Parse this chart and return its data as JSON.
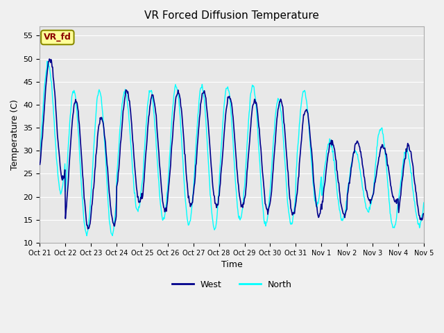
{
  "title": "VR Forced Diffusion Temperature",
  "xlabel": "Time",
  "ylabel": "Temperature (C)",
  "ylim": [
    10,
    57
  ],
  "yticks": [
    10,
    15,
    20,
    25,
    30,
    35,
    40,
    45,
    50,
    55
  ],
  "background_color": "#f0f0f0",
  "plot_bg_color": "#e8e8e8",
  "west_color": "#00008B",
  "north_color": "#00FFFF",
  "annotation_text": "VR_fd",
  "annotation_bg": "#FFFF99",
  "annotation_border": "#8B8B00",
  "annotation_text_color": "#8B0000",
  "xtick_labels": [
    "Oct 21",
    "Oct 22",
    "Oct 23",
    "Oct 24",
    "Oct 25",
    "Oct 26",
    "Oct 27",
    "Oct 28",
    "Oct 29",
    "Oct 30",
    "Oct 31",
    "Nov 1",
    "Nov 2",
    "Nov 3",
    "Nov 4",
    "Nov 5"
  ],
  "grid_color": "#ffffff",
  "legend_west": "West",
  "legend_north": "North",
  "days": 15,
  "day_data": [
    [
      50,
      24,
      49,
      21
    ],
    [
      41,
      13,
      43,
      12
    ],
    [
      37,
      14,
      43,
      12
    ],
    [
      43,
      19,
      43,
      17
    ],
    [
      42,
      17,
      43,
      15
    ],
    [
      43,
      18,
      44,
      14
    ],
    [
      43,
      18,
      44,
      13
    ],
    [
      42,
      18,
      44,
      15
    ],
    [
      41,
      17,
      44,
      14
    ],
    [
      41,
      16,
      41,
      14
    ],
    [
      39,
      16,
      43,
      18
    ],
    [
      32,
      16,
      32,
      15
    ],
    [
      32,
      19,
      30,
      17
    ],
    [
      31,
      19,
      35,
      13
    ],
    [
      31,
      15,
      30,
      14
    ]
  ]
}
